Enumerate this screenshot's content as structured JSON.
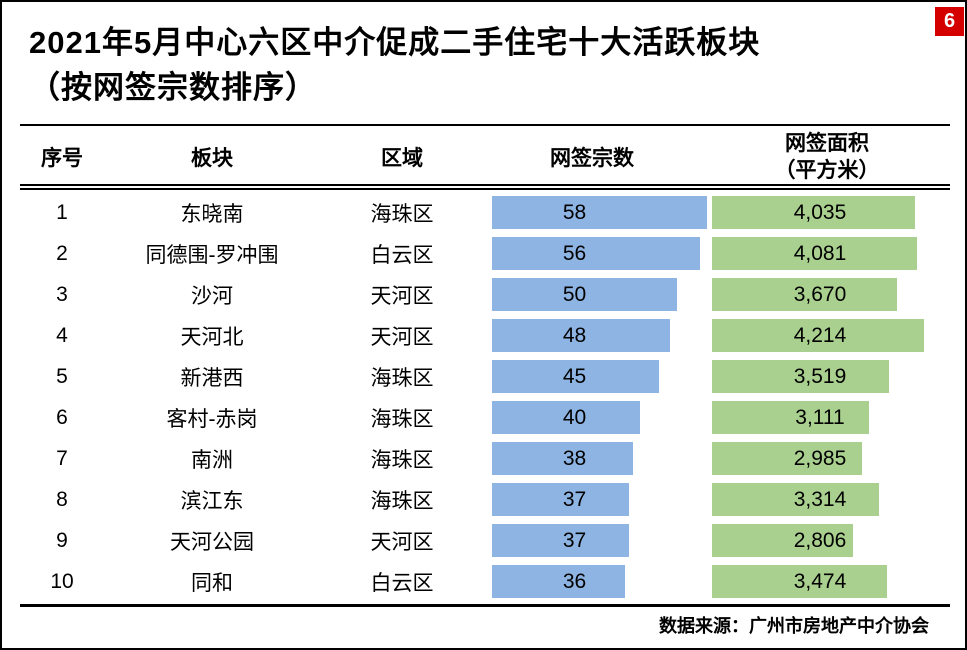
{
  "page": {
    "badge": "6",
    "source": "数据来源：广州市房地产中介协会"
  },
  "title": {
    "line1": "2021年5月中心六区中介促成二手住宅十大活跃板块",
    "line2": "（按网签宗数排序）"
  },
  "table": {
    "headers": {
      "rank": "序号",
      "sector": "板块",
      "district": "区域",
      "deals": "网签宗数",
      "area_line1": "网签面积",
      "area_line2": "（平方米）"
    }
  },
  "colors": {
    "deals_bar": "#8DB4E2",
    "area_bar": "#A9D08E",
    "badge_bg": "#D40000",
    "badge_text": "#FFFFFF"
  },
  "chart_data": {
    "type": "bar",
    "title": "2021年5月中心六区中介促成二手住宅十大活跃板块（按网签宗数排序）",
    "legend_position": "none",
    "grid": false,
    "categories": [
      "东晓南",
      "同德围-罗冲围",
      "沙河",
      "天河北",
      "新港西",
      "客村-赤岗",
      "南洲",
      "滨江东",
      "天河公园",
      "同和"
    ],
    "districts": [
      "海珠区",
      "白云区",
      "天河区",
      "天河区",
      "海珠区",
      "海珠区",
      "海珠区",
      "海珠区",
      "天河区",
      "白云区"
    ],
    "series": [
      {
        "name": "网签宗数",
        "values": [
          58,
          56,
          50,
          48,
          45,
          40,
          38,
          37,
          37,
          36
        ]
      },
      {
        "name": "网签面积（平方米）",
        "values": [
          4035,
          4081,
          3670,
          4214,
          3519,
          3111,
          2985,
          3314,
          2806,
          3474
        ]
      }
    ],
    "rows": [
      {
        "rank": "1",
        "sector": "东晓南",
        "district": "海珠区",
        "deals": 58,
        "deals_label": "58",
        "area": 4035,
        "area_label": "4,035"
      },
      {
        "rank": "2",
        "sector": "同德围-罗冲围",
        "district": "白云区",
        "deals": 56,
        "deals_label": "56",
        "area": 4081,
        "area_label": "4,081"
      },
      {
        "rank": "3",
        "sector": "沙河",
        "district": "天河区",
        "deals": 50,
        "deals_label": "50",
        "area": 3670,
        "area_label": "3,670"
      },
      {
        "rank": "4",
        "sector": "天河北",
        "district": "天河区",
        "deals": 48,
        "deals_label": "48",
        "area": 4214,
        "area_label": "4,214"
      },
      {
        "rank": "5",
        "sector": "新港西",
        "district": "海珠区",
        "deals": 45,
        "deals_label": "45",
        "area": 3519,
        "area_label": "3,519"
      },
      {
        "rank": "6",
        "sector": "客村-赤岗",
        "district": "海珠区",
        "deals": 40,
        "deals_label": "40",
        "area": 3111,
        "area_label": "3,111"
      },
      {
        "rank": "7",
        "sector": "南洲",
        "district": "海珠区",
        "deals": 38,
        "deals_label": "38",
        "area": 2985,
        "area_label": "2,985"
      },
      {
        "rank": "8",
        "sector": "滨江东",
        "district": "海珠区",
        "deals": 37,
        "deals_label": "37",
        "area": 3314,
        "area_label": "3,314"
      },
      {
        "rank": "9",
        "sector": "天河公园",
        "district": "天河区",
        "deals": 37,
        "deals_label": "37",
        "area": 2806,
        "area_label": "2,806"
      },
      {
        "rank": "10",
        "sector": "同和",
        "district": "白云区",
        "deals": 36,
        "deals_label": "36",
        "area": 3474,
        "area_label": "3,474"
      }
    ],
    "source": "数据来源：广州市房地产中介协会"
  }
}
